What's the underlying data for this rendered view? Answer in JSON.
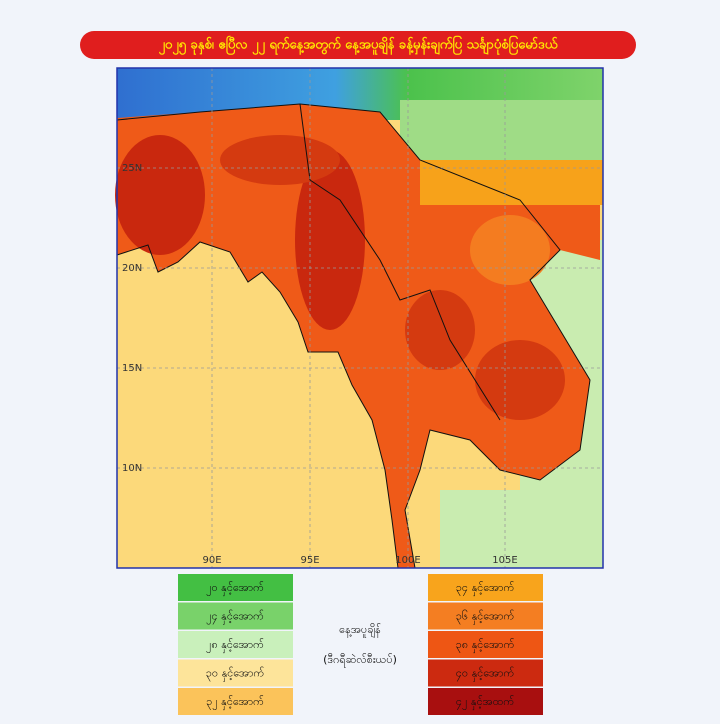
{
  "header": {
    "title": "၂၀၂၅ ခုနှစ်၊ ဧပြီလ ၂၂ ရက်နေ့အတွက် နေ့အပူချိန် ခန့်မှန်းချက်ပြ သင်္ချာပုံစံပြမော်ဒယ်"
  },
  "map": {
    "lon_labels": [
      "90E",
      "95E",
      "100E",
      "105E"
    ],
    "lat_labels": [
      "25N",
      "20N",
      "15N",
      "10N"
    ]
  },
  "legend": {
    "title": "နေ့အပူချိန်",
    "unit": "(ဒီဂရီဆဲလ်စီးယပ်)",
    "left": [
      {
        "label": "၂၀ နှင့်အောက်",
        "color": "#43bf43"
      },
      {
        "label": "၂၄ နှင့်အောက်",
        "color": "#79d26a"
      },
      {
        "label": "၂၈ နှင့်အောက်",
        "color": "#c9f0bb"
      },
      {
        "label": "၃၀ နှင့်အောက်",
        "color": "#fde49a"
      },
      {
        "label": "၃၂ နှင့်အောက်",
        "color": "#fbc35a"
      }
    ],
    "right": [
      {
        "label": "၃၄ နှင့်အောက်",
        "color": "#f8a41c"
      },
      {
        "label": "၃၆ နှင့်အောက်",
        "color": "#f47e22"
      },
      {
        "label": "၃၈ နှင့်အောက်",
        "color": "#ee5614"
      },
      {
        "label": "၄၀ နှင့်အောက်",
        "color": "#cc2a10"
      },
      {
        "label": "၄၂ နှင့်အထက်",
        "color": "#a80f0f"
      }
    ]
  }
}
